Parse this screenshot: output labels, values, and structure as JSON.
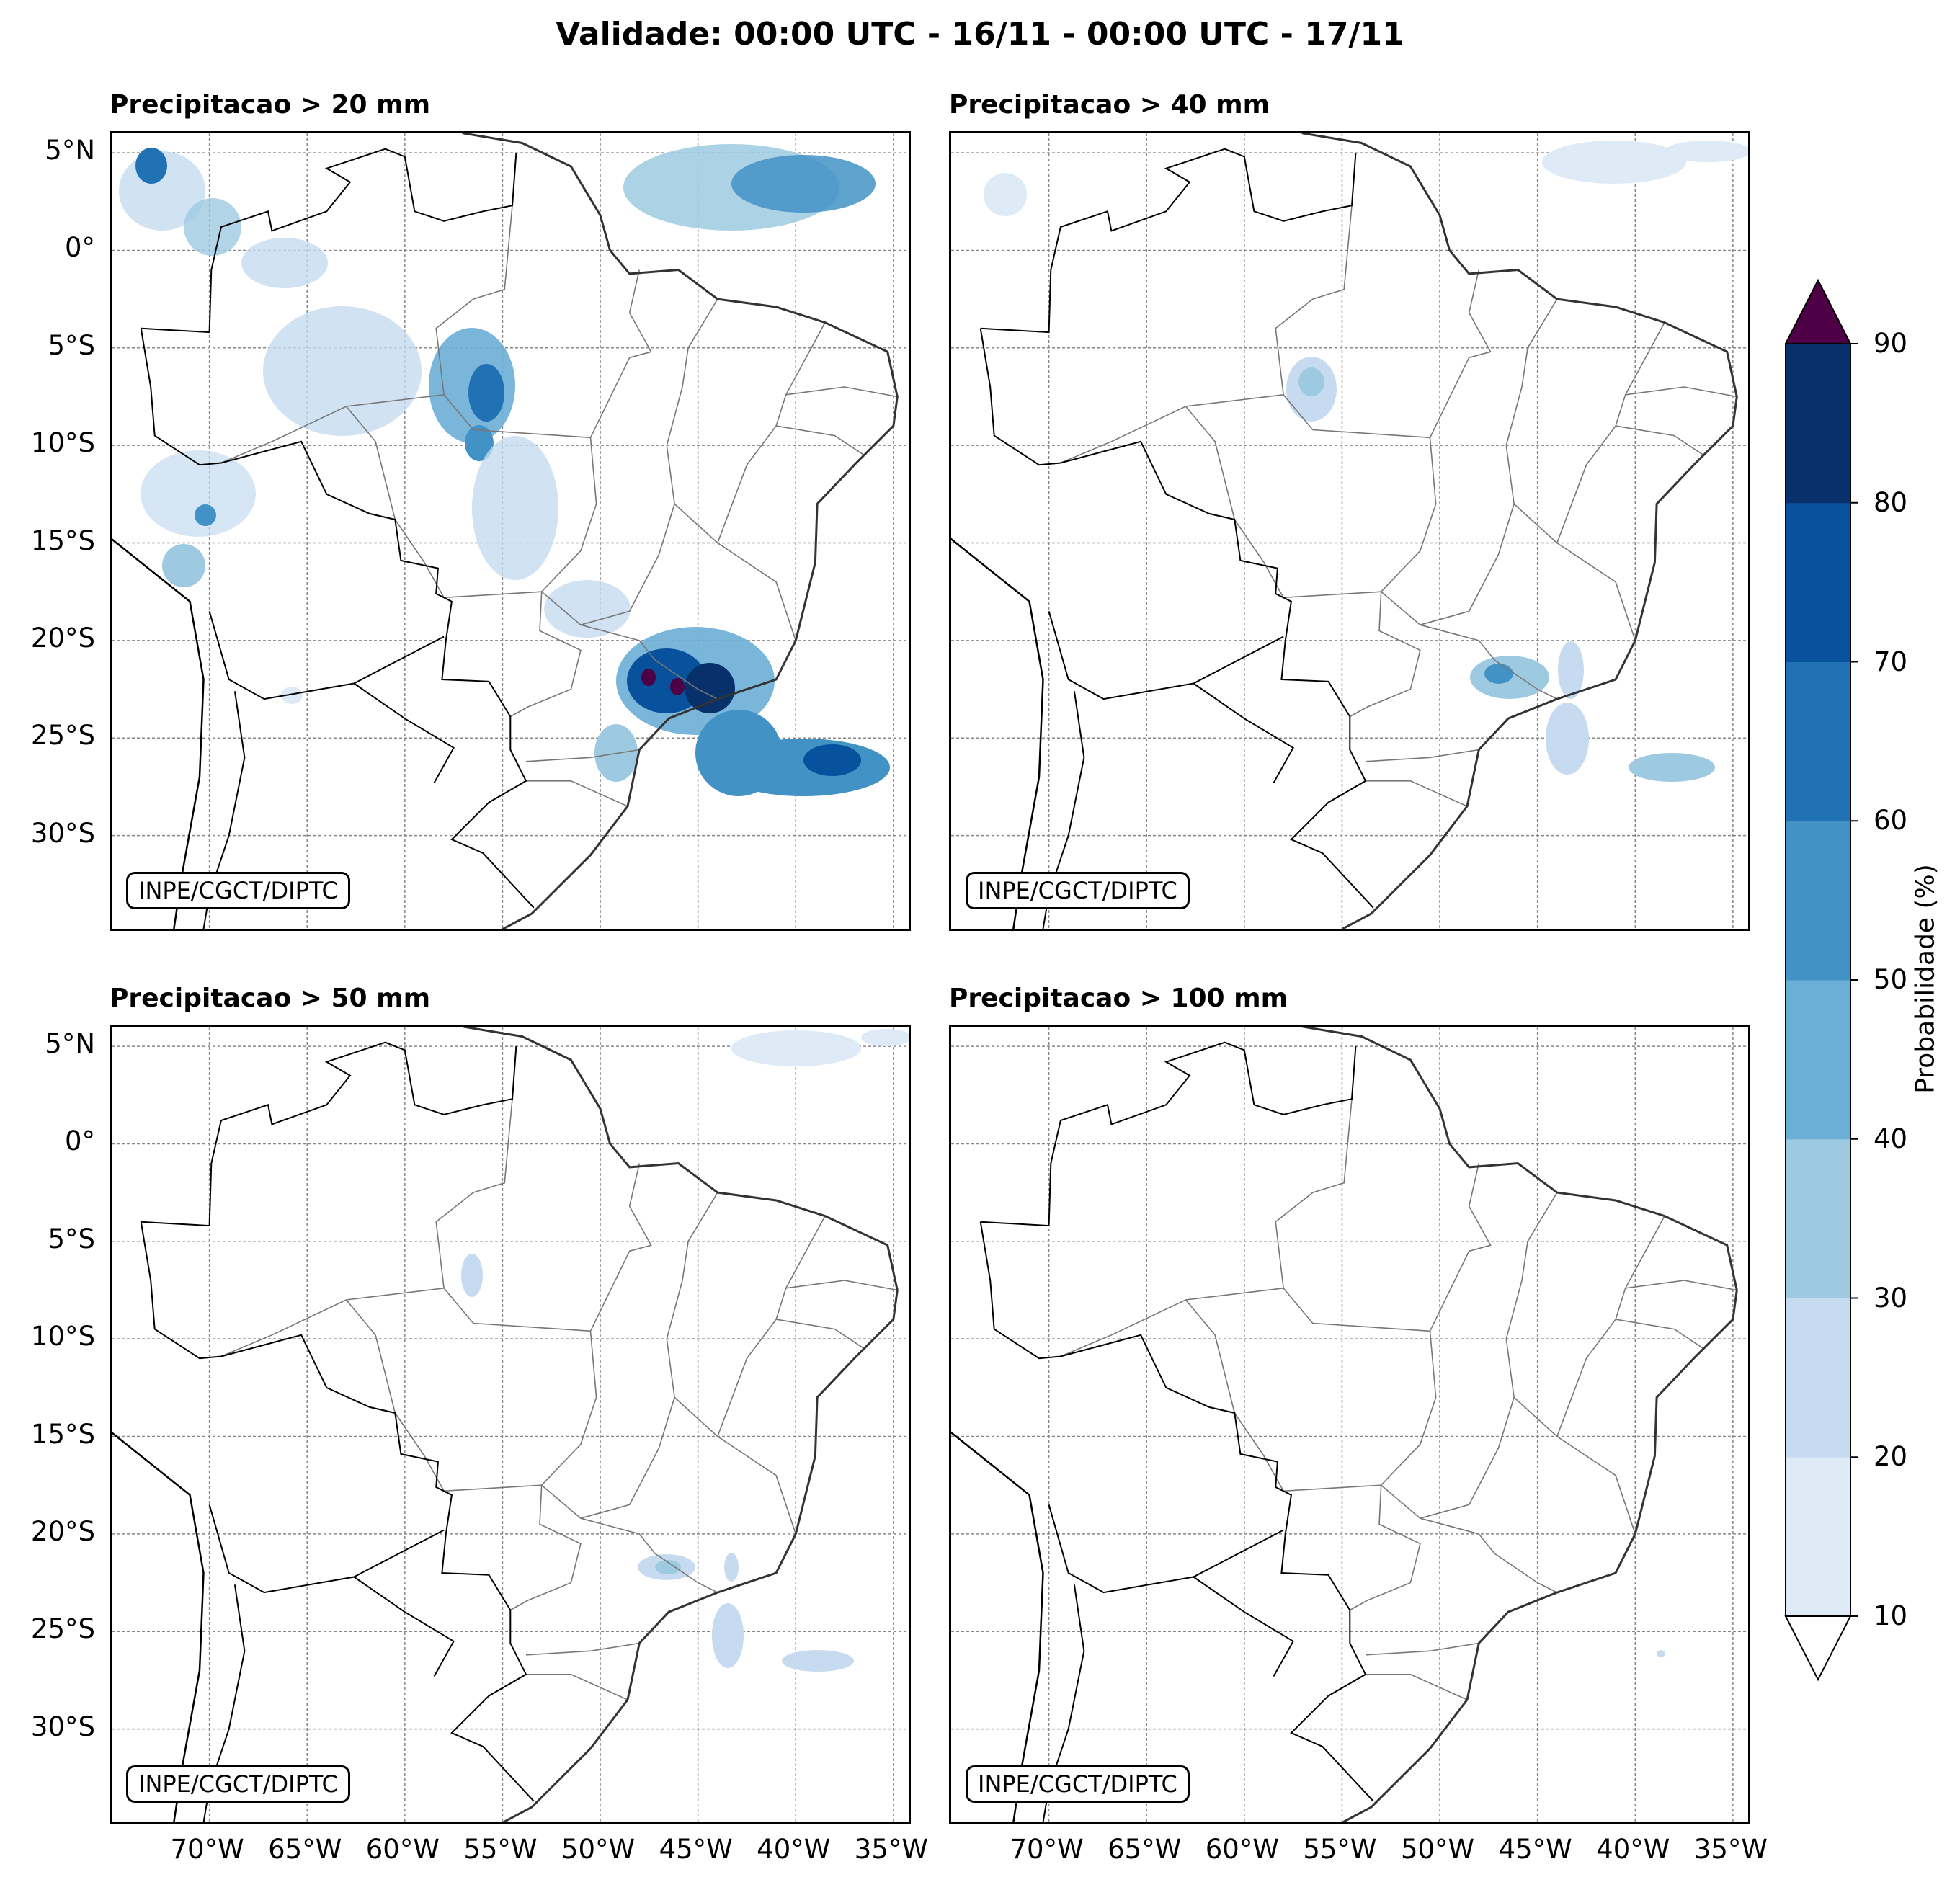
{
  "title": "Validade: 00:00 UTC - 16/11 - 00:00 UTC - 17/11",
  "credit": "INPE/CGCT/DIPTC",
  "panels": [
    {
      "title": "Precipitacao > 20 mm"
    },
    {
      "title": "Precipitacao > 40 mm"
    },
    {
      "title": "Precipitacao > 50 mm"
    },
    {
      "title": "Precipitacao > 100 mm"
    }
  ],
  "lat_labels": [
    "5°N",
    "0°",
    "5°S",
    "10°S",
    "15°S",
    "20°S",
    "25°S",
    "30°S"
  ],
  "lon_labels": [
    "70°W",
    "65°W",
    "60°W",
    "55°W",
    "50°W",
    "45°W",
    "40°W",
    "35°W"
  ],
  "colorbar": {
    "label": "Probabilidade (%)",
    "ticks": [
      "10",
      "20",
      "30",
      "40",
      "50",
      "60",
      "70",
      "80",
      "90"
    ],
    "colors": [
      "#deebf7",
      "#c6dbef",
      "#9ecae1",
      "#6baed6",
      "#4292c6",
      "#2171b5",
      "#08519c",
      "#08306b"
    ],
    "over_color": "#4d0045",
    "under_color": "#ffffff"
  },
  "map_extent": {
    "lon": [
      -75,
      -34
    ],
    "lat": [
      -35,
      6
    ]
  }
}
